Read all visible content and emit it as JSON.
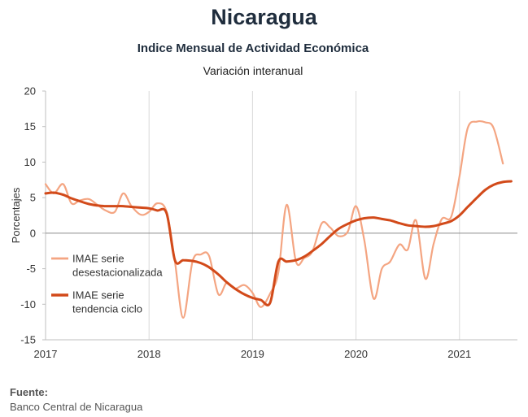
{
  "header": {
    "title": "Nicaragua",
    "subtitle": "Indice Mensual de  Actividad Económica",
    "subtitle2": "Variación interanual"
  },
  "footer": {
    "source_label": "Fuente:",
    "source_text": "Banco Central de Nicaragua"
  },
  "chart_data": {
    "type": "line",
    "ylabel": "Porcentajes",
    "ylim": [
      -15,
      20
    ],
    "yticks": [
      -15,
      -10,
      -5,
      0,
      5,
      10,
      15,
      20
    ],
    "xlim": [
      2017,
      2021.56
    ],
    "xticks": [
      "2017",
      "2018",
      "2019",
      "2020",
      "2021"
    ],
    "grid": "vertical at years, horizontal at zero",
    "legend_position": "left-middle",
    "series": [
      {
        "name": "IMAE serie desestacionalizada",
        "color": "#f4a582",
        "points": [
          [
            2017.0,
            6.9
          ],
          [
            2017.08,
            5.6
          ],
          [
            2017.17,
            6.9
          ],
          [
            2017.25,
            4.2
          ],
          [
            2017.33,
            4.6
          ],
          [
            2017.42,
            4.8
          ],
          [
            2017.5,
            4.0
          ],
          [
            2017.58,
            3.2
          ],
          [
            2017.67,
            3.0
          ],
          [
            2017.75,
            5.6
          ],
          [
            2017.83,
            3.8
          ],
          [
            2017.92,
            2.6
          ],
          [
            2018.0,
            3.0
          ],
          [
            2018.08,
            4.2
          ],
          [
            2018.17,
            3.0
          ],
          [
            2018.25,
            -4.0
          ],
          [
            2018.33,
            -11.9
          ],
          [
            2018.42,
            -4.0
          ],
          [
            2018.5,
            -3.0
          ],
          [
            2018.58,
            -3.2
          ],
          [
            2018.67,
            -8.6
          ],
          [
            2018.75,
            -7.0
          ],
          [
            2018.83,
            -7.8
          ],
          [
            2018.92,
            -7.3
          ],
          [
            2019.0,
            -8.4
          ],
          [
            2019.08,
            -10.4
          ],
          [
            2019.17,
            -8.5
          ],
          [
            2019.25,
            -5.5
          ],
          [
            2019.33,
            4.0
          ],
          [
            2019.42,
            -4.0
          ],
          [
            2019.5,
            -3.5
          ],
          [
            2019.58,
            -2.5
          ],
          [
            2019.67,
            1.4
          ],
          [
            2019.75,
            0.8
          ],
          [
            2019.83,
            -0.4
          ],
          [
            2019.92,
            0.2
          ],
          [
            2020.0,
            3.8
          ],
          [
            2020.08,
            -1.0
          ],
          [
            2020.17,
            -9.2
          ],
          [
            2020.25,
            -5.0
          ],
          [
            2020.33,
            -4.0
          ],
          [
            2020.42,
            -1.6
          ],
          [
            2020.5,
            -2.3
          ],
          [
            2020.58,
            1.8
          ],
          [
            2020.67,
            -6.4
          ],
          [
            2020.75,
            -1.5
          ],
          [
            2020.83,
            2.0
          ],
          [
            2020.92,
            2.3
          ],
          [
            2021.0,
            8.0
          ],
          [
            2021.08,
            14.8
          ],
          [
            2021.17,
            15.7
          ],
          [
            2021.25,
            15.6
          ],
          [
            2021.33,
            14.8
          ],
          [
            2021.42,
            9.8
          ]
        ]
      },
      {
        "name": "IMAE serie tendencia ciclo",
        "color": "#d24a1a",
        "points": [
          [
            2017.0,
            5.6
          ],
          [
            2017.08,
            5.7
          ],
          [
            2017.17,
            5.4
          ],
          [
            2017.25,
            4.9
          ],
          [
            2017.33,
            4.5
          ],
          [
            2017.42,
            4.1
          ],
          [
            2017.5,
            3.9
          ],
          [
            2017.58,
            3.8
          ],
          [
            2017.67,
            3.8
          ],
          [
            2017.75,
            3.8
          ],
          [
            2017.83,
            3.7
          ],
          [
            2017.92,
            3.6
          ],
          [
            2018.0,
            3.5
          ],
          [
            2018.08,
            3.2
          ],
          [
            2018.17,
            2.8
          ],
          [
            2018.25,
            -3.8
          ],
          [
            2018.33,
            -3.8
          ],
          [
            2018.42,
            -3.9
          ],
          [
            2018.5,
            -4.2
          ],
          [
            2018.58,
            -4.8
          ],
          [
            2018.67,
            -5.8
          ],
          [
            2018.75,
            -6.9
          ],
          [
            2018.83,
            -7.8
          ],
          [
            2018.92,
            -8.6
          ],
          [
            2019.0,
            -9.1
          ],
          [
            2019.08,
            -9.4
          ],
          [
            2019.17,
            -9.8
          ],
          [
            2019.25,
            -4.0
          ],
          [
            2019.33,
            -4.0
          ],
          [
            2019.42,
            -3.8
          ],
          [
            2019.5,
            -3.3
          ],
          [
            2019.58,
            -2.5
          ],
          [
            2019.67,
            -1.5
          ],
          [
            2019.75,
            -0.4
          ],
          [
            2019.83,
            0.6
          ],
          [
            2019.92,
            1.3
          ],
          [
            2020.0,
            1.8
          ],
          [
            2020.08,
            2.1
          ],
          [
            2020.17,
            2.2
          ],
          [
            2020.25,
            2.0
          ],
          [
            2020.33,
            1.8
          ],
          [
            2020.42,
            1.4
          ],
          [
            2020.5,
            1.1
          ],
          [
            2020.58,
            1.0
          ],
          [
            2020.67,
            0.9
          ],
          [
            2020.75,
            1.0
          ],
          [
            2020.83,
            1.3
          ],
          [
            2020.92,
            1.7
          ],
          [
            2021.0,
            2.5
          ],
          [
            2021.08,
            3.7
          ],
          [
            2021.17,
            5.0
          ],
          [
            2021.25,
            6.1
          ],
          [
            2021.33,
            6.8
          ],
          [
            2021.42,
            7.2
          ],
          [
            2021.5,
            7.3
          ]
        ]
      }
    ]
  }
}
